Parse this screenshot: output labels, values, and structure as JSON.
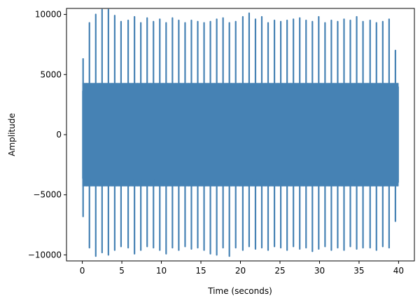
{
  "chart_data": {
    "type": "line",
    "title": "",
    "xlabel": "Time (seconds)",
    "ylabel": "Amplitude",
    "xlim": [
      -2,
      42
    ],
    "ylim": [
      -10500,
      10500
    ],
    "xticks": [
      0,
      5,
      10,
      15,
      20,
      25,
      30,
      35,
      40
    ],
    "yticks": [
      -10000,
      -5000,
      0,
      5000,
      10000
    ],
    "xtick_labels": [
      "0",
      "5",
      "10",
      "15",
      "20",
      "25",
      "30",
      "35",
      "40"
    ],
    "ytick_labels": [
      "−10000",
      "−5000",
      "0",
      "5000",
      "10000"
    ],
    "grid": false,
    "series": [
      {
        "color": "#4682b4",
        "x_range": [
          0,
          40
        ],
        "dense_band": [
          -4300,
          4300
        ],
        "peak_times": [
          0.1,
          0.9,
          1.7,
          2.5,
          3.3,
          4.1,
          4.9,
          5.8,
          6.6,
          7.4,
          8.2,
          9.0,
          9.8,
          10.6,
          11.4,
          12.2,
          13.0,
          13.8,
          14.6,
          15.4,
          16.2,
          17.0,
          17.8,
          18.6,
          19.4,
          20.3,
          21.1,
          21.9,
          22.7,
          23.5,
          24.3,
          25.1,
          25.9,
          26.7,
          27.5,
          28.3,
          29.1,
          29.9,
          30.7,
          31.5,
          32.3,
          33.1,
          33.9,
          34.7,
          35.5,
          36.4,
          37.2,
          38.0,
          38.8,
          39.6
        ],
        "peak_max": [
          6300,
          9300,
          10000,
          10400,
          10400,
          9900,
          9400,
          9500,
          9800,
          9300,
          9700,
          9400,
          9600,
          9300,
          9700,
          9500,
          9300,
          9500,
          9400,
          9300,
          9400,
          9600,
          9700,
          9300,
          9400,
          9800,
          10100,
          9600,
          9800,
          9300,
          9500,
          9400,
          9500,
          9600,
          9700,
          9500,
          9400,
          9800,
          9300,
          9500,
          9400,
          9600,
          9500,
          9800,
          9400,
          9500,
          9300,
          9400,
          9600,
          7000
        ],
        "peak_min": [
          -6800,
          -9400,
          -10100,
          -9800,
          -10000,
          -9600,
          -9300,
          -9400,
          -9900,
          -9600,
          -9300,
          -9400,
          -9600,
          -9900,
          -9400,
          -9600,
          -9300,
          -9500,
          -9400,
          -9600,
          -9900,
          -10000,
          -9400,
          -10100,
          -9400,
          -9600,
          -9300,
          -9500,
          -9400,
          -9600,
          -9300,
          -9400,
          -9600,
          -9300,
          -9500,
          -9400,
          -9700,
          -9500,
          -9300,
          -9600,
          -9400,
          -9600,
          -9300,
          -9500,
          -9400,
          -9400,
          -9600,
          -9300,
          -9400,
          -7200
        ]
      }
    ]
  }
}
